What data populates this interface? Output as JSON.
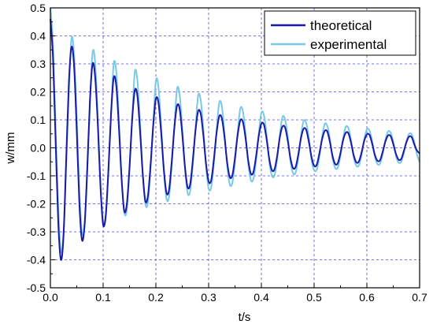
{
  "chart_data": {
    "type": "line",
    "xlabel": "t/s",
    "ylabel": "w/mm",
    "xlim": [
      0,
      0.7
    ],
    "ylim": [
      -0.5,
      0.5
    ],
    "x_ticks": [
      "0.0",
      "0.1",
      "0.2",
      "0.3",
      "0.4",
      "0.5",
      "0.6",
      "0.7"
    ],
    "y_ticks": [
      "0.5",
      "0.4",
      "0.3",
      "0.2",
      "0.1",
      "0.0",
      "-0.1",
      "-0.2",
      "-0.3",
      "-0.4",
      "-0.5"
    ],
    "grid": true,
    "legend": {
      "placement": "top-right"
    },
    "series": [
      {
        "name": "theoretical",
        "color": "#1a1aa6",
        "x": [
          0.0,
          0.005,
          0.01,
          0.015,
          0.02,
          0.025,
          0.03,
          0.035,
          0.04,
          0.045,
          0.05,
          0.055,
          0.06,
          0.065,
          0.07,
          0.075,
          0.08,
          0.085,
          0.09,
          0.095,
          0.1,
          0.105,
          0.11,
          0.115,
          0.12,
          0.125,
          0.13,
          0.135,
          0.14,
          0.145,
          0.15,
          0.155,
          0.16,
          0.165,
          0.17,
          0.175,
          0.18,
          0.185,
          0.19,
          0.195,
          0.2,
          0.205,
          0.21,
          0.215,
          0.22,
          0.225,
          0.23,
          0.235,
          0.24,
          0.245,
          0.25,
          0.255,
          0.26,
          0.265,
          0.27,
          0.275,
          0.28,
          0.285,
          0.29,
          0.295,
          0.3,
          0.305,
          0.31,
          0.315,
          0.32,
          0.325,
          0.33,
          0.335,
          0.34,
          0.345,
          0.35,
          0.355,
          0.36,
          0.365,
          0.37,
          0.375,
          0.38,
          0.385,
          0.39,
          0.395,
          0.4,
          0.405,
          0.41,
          0.415,
          0.42,
          0.425,
          0.43,
          0.435,
          0.44,
          0.445,
          0.45,
          0.455,
          0.46,
          0.465,
          0.47,
          0.475,
          0.48,
          0.485,
          0.49,
          0.495,
          0.5,
          0.505,
          0.51,
          0.515,
          0.52,
          0.525,
          0.53,
          0.535,
          0.54,
          0.545,
          0.55,
          0.555,
          0.56,
          0.565,
          0.57,
          0.575,
          0.58,
          0.585,
          0.59,
          0.595,
          0.6,
          0.605,
          0.61,
          0.615,
          0.62,
          0.625,
          0.63,
          0.635,
          0.64,
          0.645,
          0.65,
          0.655,
          0.66,
          0.665,
          0.67,
          0.675,
          0.68,
          0.685,
          0.69,
          0.695,
          0.7
        ],
        "y": [
          0.46,
          0.32,
          0.02,
          -0.27,
          -0.4,
          -0.31,
          -0.04,
          0.23,
          0.36,
          0.29,
          0.06,
          -0.2,
          -0.33,
          -0.27,
          -0.07,
          0.17,
          0.3,
          0.25,
          0.08,
          -0.14,
          -0.275,
          -0.24,
          -0.08,
          0.12,
          0.25,
          0.22,
          0.07,
          -0.11,
          -0.225,
          -0.2,
          -0.07,
          0.1,
          0.205,
          0.185,
          0.06,
          -0.09,
          -0.19,
          -0.17,
          -0.06,
          0.08,
          0.175,
          0.16,
          0.055,
          -0.075,
          -0.16,
          -0.15,
          -0.05,
          0.07,
          0.15,
          0.14,
          0.05,
          -0.065,
          -0.14,
          -0.13,
          -0.045,
          0.06,
          0.13,
          0.122,
          0.045,
          -0.055,
          -0.12,
          -0.115,
          -0.04,
          0.052,
          0.112,
          0.106,
          0.04,
          -0.05,
          -0.104,
          -0.098,
          -0.035,
          0.046,
          0.098,
          0.092,
          0.035,
          -0.044,
          -0.092,
          -0.086,
          -0.03,
          0.042,
          0.086,
          0.082,
          0.03,
          -0.04,
          -0.08,
          -0.076,
          -0.028,
          0.038,
          0.076,
          0.072,
          0.026,
          -0.036,
          -0.072,
          -0.068,
          -0.024,
          0.034,
          0.068,
          0.064,
          0.022,
          -0.032,
          -0.064,
          -0.06,
          -0.02,
          0.03,
          0.06,
          0.058,
          0.02,
          -0.03,
          -0.058,
          -0.054,
          -0.018,
          0.028,
          0.054,
          0.052,
          0.018,
          -0.026,
          -0.052,
          -0.048,
          -0.016,
          0.025,
          0.048,
          0.046,
          0.015,
          -0.024,
          -0.046,
          -0.044,
          -0.014,
          0.022,
          0.044,
          0.042,
          0.014,
          -0.021,
          -0.042,
          -0.04,
          -0.012,
          0.02,
          0.04,
          0.038,
          0.012,
          -0.01,
          -0.02
        ]
      },
      {
        "name": "experimental",
        "color": "#78c8e6",
        "x": [
          0.0,
          0.005,
          0.01,
          0.015,
          0.02,
          0.025,
          0.03,
          0.035,
          0.04,
          0.045,
          0.05,
          0.055,
          0.06,
          0.065,
          0.07,
          0.075,
          0.08,
          0.085,
          0.09,
          0.095,
          0.1,
          0.105,
          0.11,
          0.115,
          0.12,
          0.125,
          0.13,
          0.135,
          0.14,
          0.145,
          0.15,
          0.155,
          0.16,
          0.165,
          0.17,
          0.175,
          0.18,
          0.185,
          0.19,
          0.195,
          0.2,
          0.205,
          0.21,
          0.215,
          0.22,
          0.225,
          0.23,
          0.235,
          0.24,
          0.245,
          0.25,
          0.255,
          0.26,
          0.265,
          0.27,
          0.275,
          0.28,
          0.285,
          0.29,
          0.295,
          0.3,
          0.305,
          0.31,
          0.315,
          0.32,
          0.325,
          0.33,
          0.335,
          0.34,
          0.345,
          0.35,
          0.355,
          0.36,
          0.365,
          0.37,
          0.375,
          0.38,
          0.385,
          0.39,
          0.395,
          0.4,
          0.405,
          0.41,
          0.415,
          0.42,
          0.425,
          0.43,
          0.435,
          0.44,
          0.445,
          0.45,
          0.455,
          0.46,
          0.465,
          0.47,
          0.475,
          0.48,
          0.485,
          0.49,
          0.495,
          0.5,
          0.505,
          0.51,
          0.515,
          0.52,
          0.525,
          0.53,
          0.535,
          0.54,
          0.545,
          0.55,
          0.555,
          0.56,
          0.565,
          0.57,
          0.575,
          0.58,
          0.585,
          0.59,
          0.595,
          0.6,
          0.605,
          0.61,
          0.615,
          0.62,
          0.625,
          0.63,
          0.635,
          0.64,
          0.645,
          0.65,
          0.655,
          0.66,
          0.665,
          0.67,
          0.675,
          0.68,
          0.685,
          0.69,
          0.695,
          0.7
        ],
        "y": [
          0.5,
          0.37,
          0.06,
          -0.22,
          -0.37,
          -0.3,
          -0.06,
          0.2,
          0.39,
          0.33,
          0.11,
          -0.16,
          -0.3,
          -0.28,
          -0.08,
          0.15,
          0.34,
          0.3,
          0.1,
          -0.13,
          -0.26,
          -0.25,
          -0.08,
          0.12,
          0.3,
          0.27,
          0.095,
          -0.11,
          -0.23,
          -0.22,
          -0.075,
          0.1,
          0.27,
          0.24,
          0.09,
          -0.09,
          -0.2,
          -0.195,
          -0.07,
          0.085,
          0.24,
          0.215,
          0.08,
          -0.08,
          -0.18,
          -0.175,
          -0.065,
          0.075,
          0.21,
          0.19,
          0.07,
          -0.07,
          -0.16,
          -0.155,
          -0.06,
          0.065,
          0.185,
          0.17,
          0.065,
          -0.065,
          -0.145,
          -0.14,
          -0.055,
          0.06,
          0.16,
          0.15,
          0.055,
          -0.06,
          -0.13,
          -0.125,
          -0.05,
          0.055,
          0.14,
          0.13,
          0.05,
          -0.055,
          -0.115,
          -0.11,
          -0.045,
          0.05,
          0.125,
          0.115,
          0.045,
          -0.05,
          -0.1,
          -0.098,
          -0.04,
          0.046,
          0.11,
          0.1,
          0.04,
          -0.046,
          -0.09,
          -0.088,
          -0.036,
          0.042,
          0.096,
          0.088,
          0.036,
          -0.042,
          -0.08,
          -0.078,
          -0.032,
          0.038,
          0.085,
          0.078,
          0.032,
          -0.038,
          -0.072,
          -0.07,
          -0.028,
          0.034,
          0.075,
          0.07,
          0.028,
          -0.034,
          -0.064,
          -0.062,
          -0.025,
          0.03,
          0.066,
          0.062,
          0.025,
          -0.03,
          -0.058,
          -0.056,
          -0.022,
          0.027,
          0.058,
          0.055,
          0.022,
          -0.027,
          -0.052,
          -0.05,
          -0.02,
          0.024,
          0.05,
          0.048,
          0.02,
          -0.024,
          -0.05
        ]
      }
    ]
  }
}
